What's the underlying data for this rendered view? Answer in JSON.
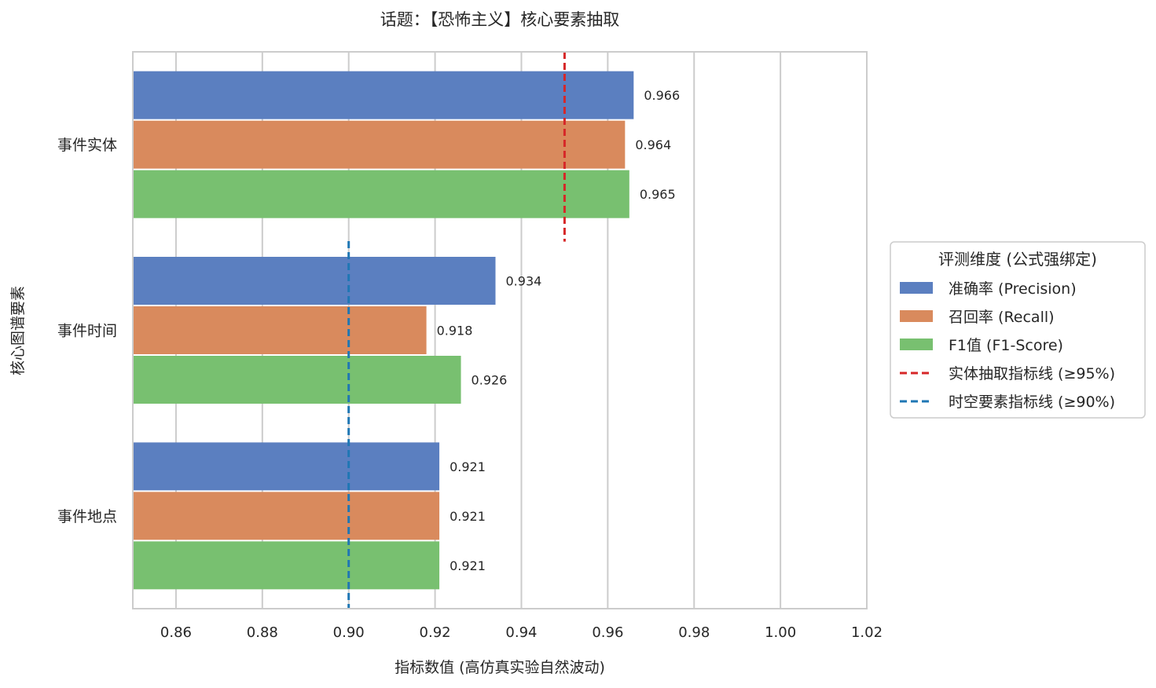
{
  "chart_data": {
    "type": "bar",
    "orientation": "horizontal",
    "title": "话题：【恐怖主义】核心要素抽取",
    "xlabel": "指标数值 (高仿真实验自然波动)",
    "ylabel": "核心图谱要素",
    "xlim": [
      0.85,
      1.02
    ],
    "xticks": [
      "0.86",
      "0.88",
      "0.90",
      "0.92",
      "0.94",
      "0.96",
      "0.98",
      "1.00",
      "1.02"
    ],
    "grid": "vertical",
    "categories": [
      "事件实体",
      "事件时间",
      "事件地点"
    ],
    "series": [
      {
        "name": "准确率 (Precision)",
        "color": "#5b7fc0",
        "values": [
          0.966,
          0.934,
          0.921
        ],
        "labels": [
          "0.966",
          "0.934",
          "0.921"
        ]
      },
      {
        "name": "召回率 (Recall)",
        "color": "#d98a5d",
        "values": [
          0.964,
          0.918,
          0.921
        ],
        "labels": [
          "0.964",
          "0.918",
          "0.921"
        ]
      },
      {
        "name": "F1值 (F1-Score)",
        "color": "#78c070",
        "values": [
          0.965,
          0.926,
          0.921
        ],
        "labels": [
          "0.965",
          "0.926",
          "0.921"
        ]
      }
    ],
    "reference_lines": [
      {
        "name": "实体抽取指标线 (≥95%)",
        "value": 0.95,
        "color": "#d62728",
        "applies_to": [
          "事件实体"
        ]
      },
      {
        "name": "时空要素指标线 (≥90%)",
        "value": 0.9,
        "color": "#1f77b4",
        "applies_to": [
          "事件时间",
          "事件地点"
        ]
      }
    ],
    "legend": {
      "title": "评测维度 (公式强绑定)",
      "placement": "right"
    }
  }
}
